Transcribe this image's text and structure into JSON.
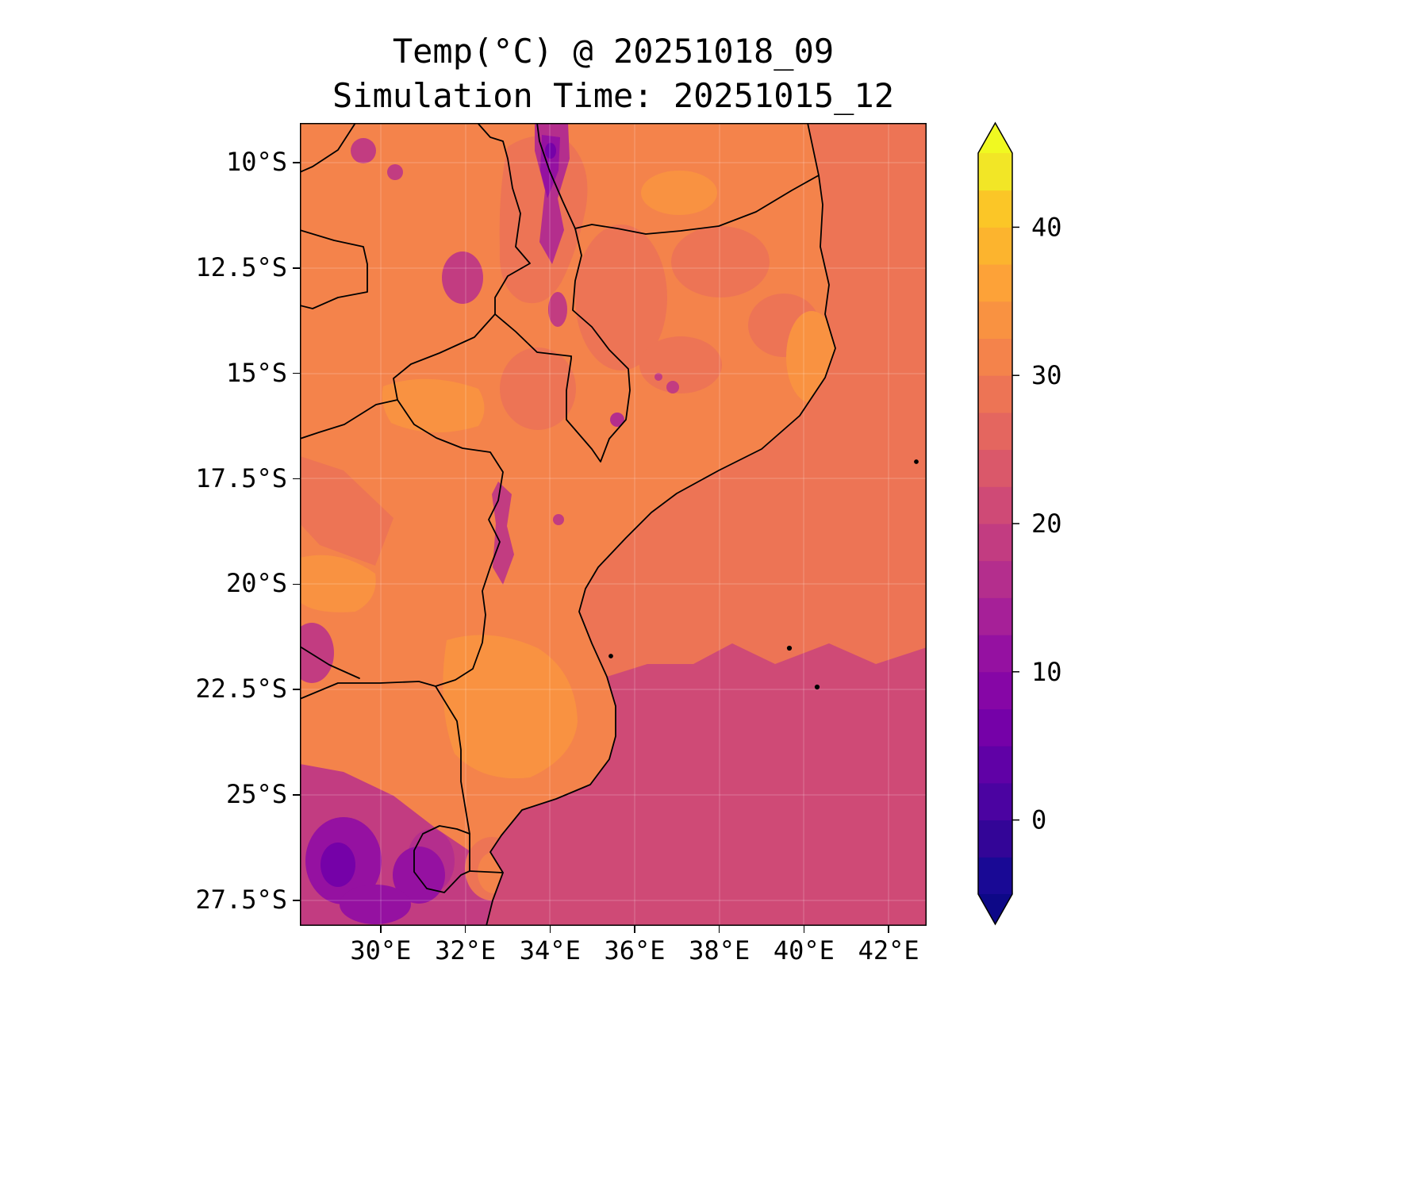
{
  "figure": {
    "background": "#ffffff",
    "title": "Temp(°C) @ 20251018_09",
    "subtitle": "Simulation Time: 20251015_12"
  },
  "axes": {
    "x_ticks": [
      {
        "label": "30°E",
        "value": 30
      },
      {
        "label": "32°E",
        "value": 32
      },
      {
        "label": "34°E",
        "value": 34
      },
      {
        "label": "36°E",
        "value": 36
      },
      {
        "label": "38°E",
        "value": 38
      },
      {
        "label": "40°E",
        "value": 40
      },
      {
        "label": "42°E",
        "value": 42
      }
    ],
    "y_ticks": [
      {
        "label": "10°S",
        "value": 10
      },
      {
        "label": "12.5°S",
        "value": 12.5
      },
      {
        "label": "15°S",
        "value": 15
      },
      {
        "label": "17.5°S",
        "value": 17.5
      },
      {
        "label": "20°S",
        "value": 20
      },
      {
        "label": "22.5°S",
        "value": 22.5
      },
      {
        "label": "25°S",
        "value": 25
      },
      {
        "label": "27.5°S",
        "value": 27.5
      }
    ],
    "lon_min": 28.09,
    "lon_max": 42.9,
    "lat_min": 9.06,
    "lat_max": 28.1
  },
  "colorbar": {
    "levels_min": -5,
    "levels_max": 45,
    "step": 2.5,
    "ticks": [
      0,
      10,
      20,
      30,
      40
    ],
    "colors": [
      "#190995",
      "#330597",
      "#4b03a1",
      "#6001a6",
      "#7501a8",
      "#8606a6",
      "#9511a1",
      "#a62098",
      "#b42e8d",
      "#c23c81",
      "#cf4a76",
      "#da586a",
      "#e4665f",
      "#ed7455",
      "#f4834b",
      "#f99241",
      "#fda238",
      "#fcb42e",
      "#fbc627",
      "#f2e626"
    ],
    "under_color": "#0d0887",
    "over_color": "#f0f921",
    "outline_color": "#000000"
  },
  "chart_data": {
    "type": "heatmap",
    "title": "Temp(°C) @ 20251018_09",
    "subtitle": "Simulation Time: 20251015_12",
    "variable": "Temp",
    "units": "°C",
    "valid_time": "20251018_09",
    "simulation_time": "20251015_12",
    "colormap": "plasma",
    "extent": {
      "lon": [
        28.1,
        42.9
      ],
      "lat": [
        -28.1,
        -9.1
      ]
    },
    "levels": {
      "min": -5,
      "max": 45,
      "step": 2.5
    },
    "colorbar_ticks": [
      0,
      10,
      20,
      30,
      40
    ],
    "graticule": true,
    "grid_lons": [
      29,
      31,
      33,
      35,
      37,
      39,
      41,
      42.5
    ],
    "grid_lats": [
      -10,
      -12,
      -14,
      -16,
      -18,
      -20,
      -22,
      -24,
      -26,
      -28
    ],
    "temps_c": [
      [
        31,
        31,
        29,
        28,
        31,
        31,
        28,
        28
      ],
      [
        31,
        30,
        31,
        28,
        30,
        31,
        28,
        28
      ],
      [
        31,
        31,
        29,
        29,
        31,
        31,
        29,
        28
      ],
      [
        32,
        33,
        30,
        28,
        30,
        31,
        28,
        28
      ],
      [
        31,
        33,
        28,
        31,
        31,
        28,
        28,
        28
      ],
      [
        32,
        31,
        31,
        32,
        28,
        28,
        28,
        28
      ],
      [
        31,
        33,
        34,
        30,
        24,
        24,
        24,
        24
      ],
      [
        28,
        31,
        33,
        29,
        24,
        24,
        24,
        24
      ],
      [
        16,
        22,
        28,
        24,
        24,
        24,
        24,
        24
      ],
      [
        14,
        18,
        24,
        24,
        24,
        24,
        24,
        24
      ]
    ],
    "regions": {
      "sea_north_of_21.5S": "27.5-30 °C",
      "sea_south_of_21.5S": "20-25 °C",
      "mozambique_lowland": "30-35 °C",
      "rift_and_highlands": "15-22 °C",
      "south_africa_highveld": "10-17 °C"
    },
    "note": "Gridded values estimated from filled contour colours; black lines are national borders and coastline."
  }
}
